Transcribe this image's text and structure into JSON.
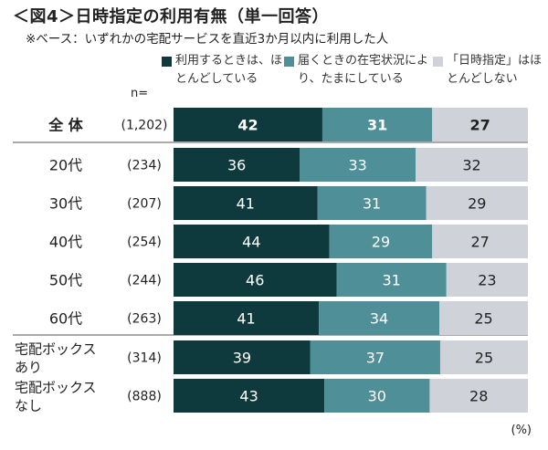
{
  "title": "＜図4＞日時指定の利用有無（単一回答）",
  "subtitle": "※ベース：いずれかの宅配サービスを直近3か月以内に利用した人",
  "n_header": "n=",
  "unit": "(%)",
  "chart_data": {
    "type": "bar",
    "orientation": "horizontal",
    "stacked": true,
    "categories": [
      "全 体",
      "20代",
      "30代",
      "40代",
      "50代",
      "60代",
      "宅配ボックスあり",
      "宅配ボックスなし"
    ],
    "n": [
      "(1,202)",
      "(234)",
      "(207)",
      "(254)",
      "(244)",
      "(263)",
      "(314)",
      "(888)"
    ],
    "series": [
      {
        "name": "利用するときは、ほとんどしている",
        "color": "#0f3a3d",
        "values": [
          42,
          36,
          41,
          44,
          46,
          41,
          39,
          43
        ]
      },
      {
        "name": "届くときの在宅状況により、たまにしている",
        "color": "#4e8f98",
        "values": [
          31,
          33,
          31,
          29,
          31,
          34,
          37,
          30
        ]
      },
      {
        "name": "「日時指定」はほとんどしない",
        "color": "#cfd3d9",
        "values": [
          27,
          32,
          29,
          27,
          23,
          25,
          25,
          28
        ]
      }
    ],
    "legend_position": "top-right",
    "grid": false
  }
}
